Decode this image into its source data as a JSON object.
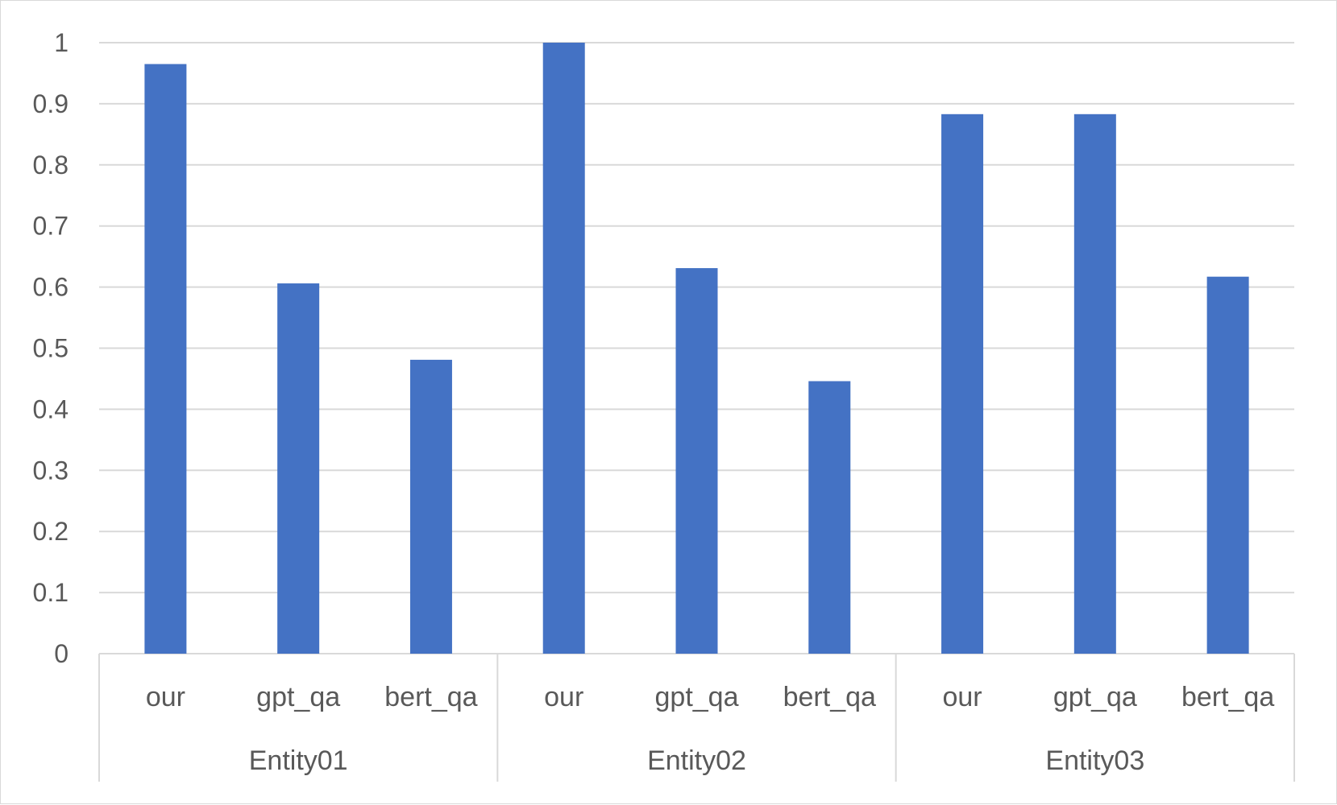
{
  "chart_data": {
    "type": "bar",
    "title": "",
    "xlabel": "",
    "ylabel": "",
    "ylim": [
      0,
      1
    ],
    "yticks": [
      "0",
      "0.1",
      "0.2",
      "0.3",
      "0.4",
      "0.5",
      "0.6",
      "0.7",
      "0.8",
      "0.9",
      "1"
    ],
    "grid": true,
    "legend": "none",
    "bar_color": "#4472C4",
    "groups": [
      {
        "label": "Entity01",
        "categories": [
          "our",
          "gpt_qa",
          "bert_qa"
        ],
        "values": [
          0.965,
          0.606,
          0.481
        ]
      },
      {
        "label": "Entity02",
        "categories": [
          "our",
          "gpt_qa",
          "bert_qa"
        ],
        "values": [
          1.0,
          0.631,
          0.446
        ]
      },
      {
        "label": "Entity03",
        "categories": [
          "our",
          "gpt_qa",
          "bert_qa"
        ],
        "values": [
          0.883,
          0.883,
          0.617
        ]
      }
    ]
  }
}
